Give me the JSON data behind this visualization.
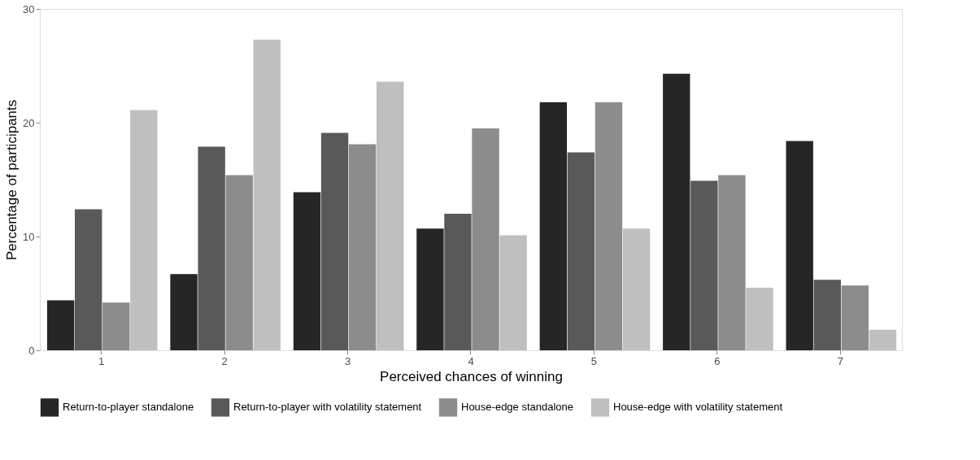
{
  "chart_data": {
    "type": "bar",
    "xlabel": "Perceived chances of winning",
    "ylabel": "Percentage of participants",
    "categories": [
      "1",
      "2",
      "3",
      "4",
      "5",
      "6",
      "7"
    ],
    "series": [
      {
        "name": "Return-to-player standalone",
        "color": "#262626",
        "values": [
          4.4,
          6.7,
          13.9,
          10.7,
          21.8,
          24.3,
          18.4
        ]
      },
      {
        "name": "Return-to-player with volatility statement",
        "color": "#595959",
        "values": [
          12.4,
          17.9,
          19.1,
          12.0,
          17.4,
          14.9,
          6.2
        ]
      },
      {
        "name": "House-edge standalone",
        "color": "#8c8c8c",
        "values": [
          4.2,
          15.4,
          18.1,
          19.5,
          21.8,
          15.4,
          5.7
        ]
      },
      {
        "name": "House-edge with volatility statement",
        "color": "#bfbfbf",
        "values": [
          21.1,
          27.3,
          23.6,
          10.1,
          10.7,
          5.5,
          1.8
        ]
      }
    ],
    "ylim": [
      0,
      30
    ],
    "yticks": [
      0,
      10,
      20,
      30
    ],
    "grid": false,
    "legend": "bottom"
  }
}
